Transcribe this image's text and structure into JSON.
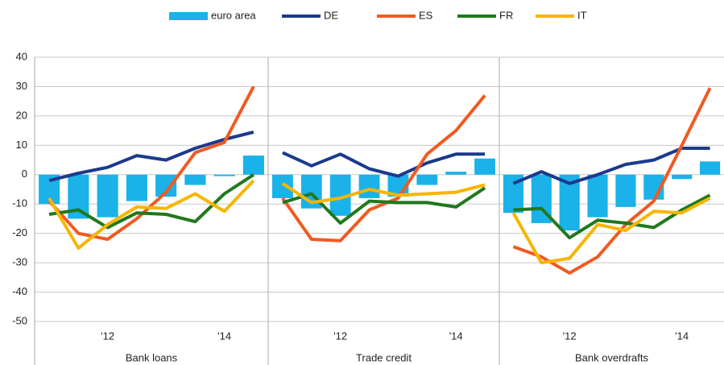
{
  "chart_data": {
    "type": "bar-line",
    "series": [
      {
        "name": "euro area",
        "color": "#1ab2e8",
        "kind": "bar"
      },
      {
        "name": "DE",
        "color": "#1b3a8c",
        "kind": "line"
      },
      {
        "name": "ES",
        "color": "#f05a22",
        "kind": "line"
      },
      {
        "name": "FR",
        "color": "#21781e",
        "kind": "line"
      },
      {
        "name": "IT",
        "color": "#f7b500",
        "kind": "line"
      }
    ],
    "legend": "top",
    "ylim": [
      -50,
      40
    ],
    "yticks": [
      -50,
      -40,
      -30,
      -20,
      -10,
      0,
      10,
      20,
      30,
      40
    ],
    "grid": true,
    "panels": [
      {
        "title": "Bank loans",
        "categories": [
          null,
          null,
          "'12",
          null,
          null,
          null,
          "'14",
          null
        ],
        "series": [
          {
            "values": [
              -10,
              -15,
              -14.5,
              -9,
              -7.5,
              -3.5,
              -0.5,
              6.5
            ]
          },
          {
            "values": [
              -2,
              0.5,
              2.5,
              6.5,
              5,
              9,
              12,
              14.5
            ]
          },
          {
            "values": [
              -9,
              -20,
              -22,
              -15,
              -6,
              7.5,
              11,
              30
            ]
          },
          {
            "values": [
              -13.5,
              -12,
              -18,
              -13,
              -13.5,
              -16,
              -6.5,
              0
            ]
          },
          {
            "values": [
              -8,
              -25,
              -17,
              -11,
              -11.5,
              -6.5,
              -12.5,
              -2
            ]
          }
        ]
      },
      {
        "title": "Trade credit",
        "categories": [
          null,
          null,
          "'12",
          null,
          null,
          null,
          "'14",
          null
        ],
        "series": [
          {
            "values": [
              -8,
              -11.5,
              -14,
              -8,
              -7.5,
              -3.5,
              1,
              5.5
            ]
          },
          {
            "values": [
              7.5,
              3,
              7,
              2,
              -0.5,
              4,
              7,
              7
            ]
          },
          {
            "values": [
              -8,
              -22,
              -22.5,
              -12,
              -8,
              7,
              15,
              27
            ]
          },
          {
            "values": [
              -9.5,
              -6.5,
              -16.5,
              -9,
              -9.5,
              -9.5,
              -11,
              -4.5
            ]
          },
          {
            "values": [
              -3,
              -9.5,
              -8,
              -5,
              -7,
              -6.5,
              -6,
              -3.5
            ]
          }
        ]
      },
      {
        "title": "Bank overdrafts",
        "categories": [
          null,
          null,
          "'12",
          null,
          null,
          null,
          "'14",
          null
        ],
        "series": [
          {
            "values": [
              -13,
              -16.5,
              -19,
              -14.5,
              -11,
              -8.5,
              -1.5,
              4.5
            ]
          },
          {
            "values": [
              -3,
              1,
              -3,
              0,
              3.5,
              5,
              9,
              9
            ]
          },
          {
            "values": [
              -24.5,
              -28,
              -33.5,
              -28,
              -17,
              -9,
              10,
              29.5
            ]
          },
          {
            "values": [
              -12,
              -11.5,
              -21.5,
              -15.5,
              -16.5,
              -18,
              -12,
              -7
            ]
          },
          {
            "values": [
              -13,
              -30,
              -28.5,
              -17,
              -19,
              -12.5,
              -13,
              -8
            ]
          }
        ]
      }
    ]
  }
}
